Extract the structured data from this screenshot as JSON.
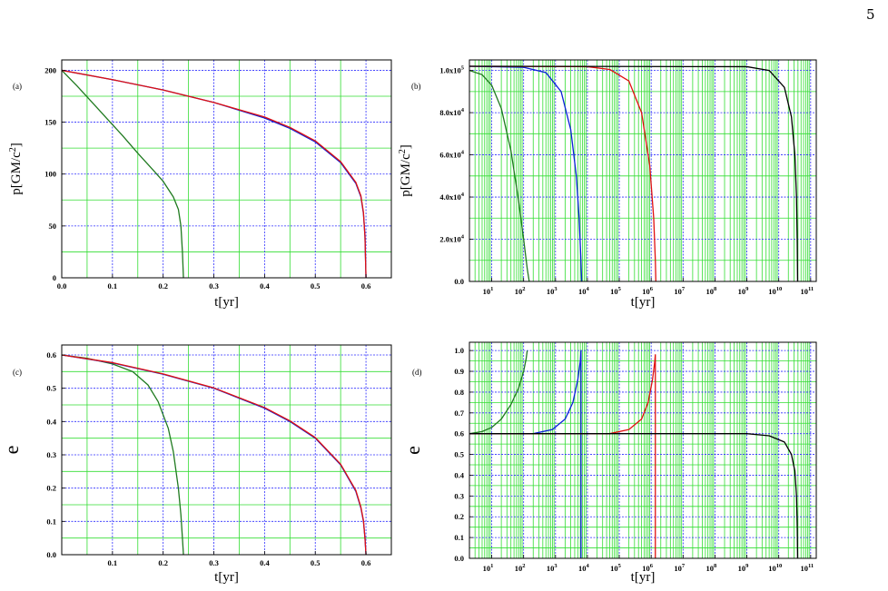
{
  "page_number": "5",
  "colors": {
    "green": "#1f7a1f",
    "blue": "#0a1fd8",
    "red": "#e01010",
    "black": "#000000",
    "grid_major": "#2a2aff",
    "grid_minor": "#33dd33"
  },
  "chart_data": [
    {
      "id": "a",
      "type": "line",
      "panel_label": "(a)",
      "xlabel": "t[yr]",
      "ylabel": "p[GM/c",
      "ylabel_sup": "2",
      "ylabel_tail": "]",
      "xscale": "linear",
      "xlim": [
        0.0,
        0.65
      ],
      "ylim": [
        0,
        210
      ],
      "xticks": [
        0.0,
        0.1,
        0.2,
        0.3,
        0.4,
        0.5,
        0.6
      ],
      "xtick_labels": [
        "0.0",
        "0.1",
        "0.2",
        "0.3",
        "0.4",
        "0.5",
        "0.6"
      ],
      "yticks": [
        0,
        50,
        100,
        150,
        200
      ],
      "ytick_labels": [
        "0",
        "50",
        "100",
        "150",
        "200"
      ],
      "grid": true,
      "series": [
        {
          "color": "#1f7a1f",
          "x": [
            0.0,
            0.03,
            0.06,
            0.09,
            0.12,
            0.15,
            0.18,
            0.2,
            0.22,
            0.23,
            0.235,
            0.238,
            0.24
          ],
          "y": [
            200,
            185,
            169,
            153,
            137,
            120,
            104,
            93,
            78,
            66,
            50,
            25,
            0
          ]
        },
        {
          "color": "#0a1fd8",
          "x": [
            0.0,
            0.1,
            0.2,
            0.3,
            0.4,
            0.45,
            0.5,
            0.55,
            0.58,
            0.59,
            0.595,
            0.598,
            0.6
          ],
          "y": [
            200,
            191,
            181,
            169,
            154,
            144,
            131,
            111,
            91,
            78,
            62,
            40,
            0
          ]
        },
        {
          "color": "#e01010",
          "x": [
            0.0,
            0.1,
            0.2,
            0.3,
            0.4,
            0.45,
            0.5,
            0.55,
            0.58,
            0.59,
            0.595,
            0.598,
            0.6
          ],
          "y": [
            200,
            191,
            181,
            169,
            155,
            145,
            132,
            112,
            92,
            79,
            63,
            40,
            0
          ]
        }
      ]
    },
    {
      "id": "b",
      "type": "line",
      "panel_label": "(b)",
      "xlabel": "t[yr]",
      "ylabel": "p[GM/c",
      "ylabel_sup": "2",
      "ylabel_tail": "]",
      "xscale": "log",
      "xlim": [
        2,
        150000000000
      ],
      "ylim": [
        0,
        105000
      ],
      "xticks": [
        10,
        100,
        1000,
        10000,
        100000,
        1000000,
        10000000,
        100000000,
        1000000000,
        10000000000,
        100000000000
      ],
      "xtick_bases": [
        "10",
        "10",
        "10",
        "10",
        "10",
        "10",
        "10",
        "10",
        "10",
        "10",
        "10"
      ],
      "xtick_exps": [
        "1",
        "2",
        "3",
        "4",
        "5",
        "6",
        "7",
        "8",
        "9",
        "10",
        "11"
      ],
      "yticks": [
        0,
        20000,
        40000,
        60000,
        80000,
        100000
      ],
      "ytick_labels": [
        "0.0",
        "2.0x10",
        "4.0x10",
        "6.0x10",
        "8.0x10",
        "1.0x10"
      ],
      "ytick_exps": [
        "",
        "4",
        "4",
        "4",
        "4",
        "5"
      ],
      "grid": true,
      "series": [
        {
          "color": "#1f7a1f",
          "x": [
            2,
            5,
            10,
            20,
            40,
            70,
            100,
            130,
            150
          ],
          "y": [
            100000,
            98000,
            93000,
            82000,
            62000,
            38000,
            20000,
            6000,
            0
          ]
        },
        {
          "color": "#0a1fd8",
          "x": [
            2,
            100,
            500,
            1500,
            3000,
            4500,
            5500,
            6200,
            6600
          ],
          "y": [
            102000,
            101500,
            99000,
            90000,
            72000,
            50000,
            30000,
            12000,
            0
          ]
        },
        {
          "color": "#e01010",
          "x": [
            2,
            10000,
            50000,
            200000,
            500000,
            900000,
            1200000,
            1350000,
            1400000
          ],
          "y": [
            102000,
            101800,
            100500,
            95000,
            80000,
            55000,
            30000,
            10000,
            0
          ]
        },
        {
          "color": "#000000",
          "x": [
            2,
            1000000000,
            5000000000,
            15000000000,
            25000000000,
            32000000000,
            36000000000,
            38000000000,
            39000000000
          ],
          "y": [
            102000,
            101800,
            100000,
            92000,
            78000,
            60000,
            40000,
            18000,
            0
          ]
        }
      ]
    },
    {
      "id": "c",
      "type": "line",
      "panel_label": "(c)",
      "xlabel": "t[yr]",
      "ylabel": "e",
      "xscale": "linear",
      "xlim": [
        0.0,
        0.65
      ],
      "ylim": [
        0.0,
        0.63
      ],
      "xticks": [
        0.1,
        0.2,
        0.3,
        0.4,
        0.5,
        0.6
      ],
      "xtick_labels": [
        "0.1",
        "0.2",
        "0.3",
        "0.4",
        "0.5",
        "0.6"
      ],
      "yticks": [
        0.0,
        0.1,
        0.2,
        0.3,
        0.4,
        0.5,
        0.6
      ],
      "ytick_labels": [
        "0.0",
        "0.1",
        "0.2",
        "0.3",
        "0.4",
        "0.5",
        "0.6"
      ],
      "grid": true,
      "series": [
        {
          "color": "#1f7a1f",
          "x": [
            0.0,
            0.05,
            0.1,
            0.14,
            0.17,
            0.19,
            0.21,
            0.22,
            0.23,
            0.235,
            0.238,
            0.24
          ],
          "y": [
            0.6,
            0.59,
            0.573,
            0.55,
            0.51,
            0.46,
            0.38,
            0.31,
            0.2,
            0.12,
            0.05,
            0.0
          ]
        },
        {
          "color": "#0a1fd8",
          "x": [
            0.0,
            0.1,
            0.2,
            0.3,
            0.4,
            0.45,
            0.5,
            0.55,
            0.58,
            0.59,
            0.595,
            0.598,
            0.6
          ],
          "y": [
            0.6,
            0.576,
            0.542,
            0.5,
            0.44,
            0.4,
            0.35,
            0.27,
            0.19,
            0.14,
            0.1,
            0.05,
            0.0
          ]
        },
        {
          "color": "#e01010",
          "x": [
            0.0,
            0.1,
            0.2,
            0.3,
            0.4,
            0.45,
            0.5,
            0.55,
            0.58,
            0.59,
            0.595,
            0.598,
            0.6
          ],
          "y": [
            0.6,
            0.577,
            0.543,
            0.501,
            0.442,
            0.402,
            0.352,
            0.272,
            0.193,
            0.143,
            0.103,
            0.05,
            0.0
          ]
        }
      ]
    },
    {
      "id": "d",
      "type": "line",
      "panel_label": "(d)",
      "xlabel": "t[yr]",
      "ylabel": "e",
      "xscale": "log",
      "xlim": [
        2,
        150000000000
      ],
      "ylim": [
        0.0,
        1.04
      ],
      "xticks": [
        10,
        100,
        1000,
        10000,
        100000,
        1000000,
        10000000,
        100000000,
        1000000000,
        10000000000,
        100000000000
      ],
      "xtick_bases": [
        "10",
        "10",
        "10",
        "10",
        "10",
        "10",
        "10",
        "10",
        "10",
        "10",
        "10"
      ],
      "xtick_exps": [
        "1",
        "2",
        "3",
        "4",
        "5",
        "6",
        "7",
        "8",
        "9",
        "10",
        "11"
      ],
      "yticks": [
        0.0,
        0.1,
        0.2,
        0.3,
        0.4,
        0.5,
        0.6,
        0.7,
        0.8,
        0.9,
        1.0
      ],
      "ytick_labels": [
        "0.0",
        "0.1",
        "0.2",
        "0.3",
        "0.4",
        "0.5",
        "0.6",
        "0.7",
        "0.8",
        "0.9",
        "1.0"
      ],
      "grid": true,
      "series": [
        {
          "color": "#1f7a1f",
          "x": [
            2,
            5,
            10,
            20,
            40,
            70,
            100,
            120,
            130
          ],
          "y": [
            0.6,
            0.61,
            0.63,
            0.67,
            0.74,
            0.82,
            0.9,
            0.96,
            1.0
          ]
        },
        {
          "color": "#0a1fd8",
          "x": [
            2,
            200,
            800,
            2000,
            3500,
            5000,
            6000,
            6300,
            6300,
            6300
          ],
          "y": [
            0.6,
            0.6,
            0.62,
            0.67,
            0.75,
            0.86,
            0.95,
            1.0,
            0.5,
            0.0
          ]
        },
        {
          "color": "#e01010",
          "x": [
            2,
            50000,
            200000,
            500000,
            800000,
            1100000,
            1300000,
            1350000,
            1350000
          ],
          "y": [
            0.6,
            0.6,
            0.62,
            0.67,
            0.75,
            0.86,
            0.95,
            0.98,
            0.0
          ]
        },
        {
          "color": "#000000",
          "x": [
            2,
            1000000000,
            5000000000,
            15000000000,
            25000000000,
            32000000000,
            36000000000,
            38000000000,
            39000000000
          ],
          "y": [
            0.6,
            0.6,
            0.59,
            0.56,
            0.5,
            0.42,
            0.3,
            0.15,
            0.0
          ]
        }
      ]
    }
  ]
}
